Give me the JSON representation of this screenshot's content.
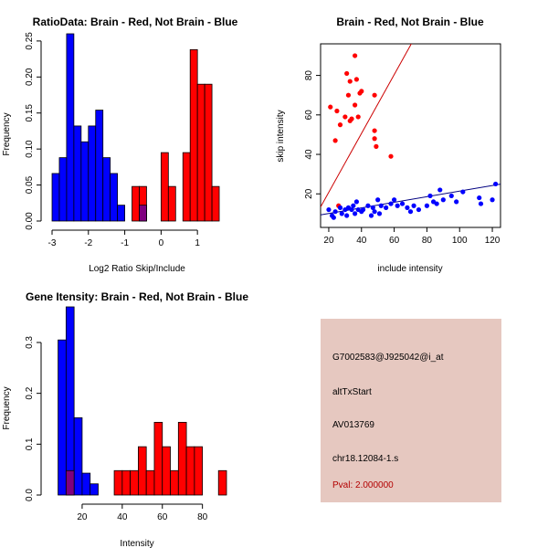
{
  "colors": {
    "red": "#ff0000",
    "blue": "#0000ff",
    "overlap": "#7f007f",
    "panel_bg": "#e6c8c0",
    "pval_text": "#b30000"
  },
  "chart_data": [
    {
      "type": "bar",
      "chart_kind": "histogram",
      "title": "RatioData: Brain - Red, Not Brain - Blue",
      "xlabel": "Log2 Ratio Skip/Include",
      "ylabel": "Frequency",
      "xlim": [
        -3,
        1.8
      ],
      "ylim": [
        0,
        0.26
      ],
      "bin_width": 0.2,
      "xticks": [
        -3,
        -2,
        -1,
        0,
        1
      ],
      "xtick_labels": [
        "-3",
        "-2",
        "-1",
        "0",
        "1"
      ],
      "yticks": [
        0,
        0.05,
        0.1,
        0.15,
        0.2,
        0.25
      ],
      "ytick_labels": [
        "0.00",
        "0.05",
        "0.10",
        "0.15",
        "0.20",
        "0.25"
      ],
      "series": [
        {
          "name": "Not Brain",
          "color": "blue",
          "bin_starts": [
            -3.0,
            -2.8,
            -2.6,
            -2.4,
            -2.2,
            -2.0,
            -1.8,
            -1.6,
            -1.4,
            -1.2,
            -1.0,
            -0.6
          ],
          "values": [
            0.066,
            0.088,
            0.26,
            0.132,
            0.11,
            0.132,
            0.154,
            0.088,
            0.066,
            0.022,
            0.0,
            0.022
          ]
        },
        {
          "name": "Brain",
          "color": "red",
          "bin_starts": [
            -0.8,
            -0.6,
            0.0,
            0.2,
            0.6,
            0.8,
            1.0,
            1.2,
            1.4
          ],
          "values": [
            0.048,
            0.048,
            0.095,
            0.048,
            0.095,
            0.238,
            0.19,
            0.19,
            0.048
          ]
        }
      ]
    },
    {
      "type": "scatter",
      "title": "Brain - Red, Not Brain - Blue",
      "xlabel": "include intensity",
      "ylabel": "skip intensity",
      "xlim": [
        15,
        125
      ],
      "ylim": [
        3,
        96
      ],
      "xticks": [
        20,
        40,
        60,
        80,
        100,
        120
      ],
      "xtick_labels": [
        "20",
        "40",
        "60",
        "80",
        "100",
        "120"
      ],
      "yticks": [
        20,
        40,
        60,
        80
      ],
      "ytick_labels": [
        "20",
        "40",
        "60",
        "80"
      ],
      "series": [
        {
          "name": "Brain",
          "color": "red",
          "points": [
            [
              21,
              64
            ],
            [
              24,
              47
            ],
            [
              25,
              62
            ],
            [
              27,
              55
            ],
            [
              30,
              59
            ],
            [
              31,
              81
            ],
            [
              32,
              70
            ],
            [
              33,
              57
            ],
            [
              33,
              77
            ],
            [
              34,
              58
            ],
            [
              36,
              90
            ],
            [
              36,
              65
            ],
            [
              37,
              78
            ],
            [
              38,
              59
            ],
            [
              39,
              71
            ],
            [
              40,
              72
            ],
            [
              48,
              70
            ],
            [
              48,
              52
            ],
            [
              48,
              48
            ],
            [
              49,
              44
            ],
            [
              58,
              39
            ],
            [
              26,
              14
            ]
          ],
          "fit": {
            "slope": 1.49,
            "intercept": -9
          }
        },
        {
          "name": "Not Brain",
          "color": "blue",
          "points": [
            [
              20,
              12
            ],
            [
              22,
              9
            ],
            [
              23,
              8
            ],
            [
              24,
              11
            ],
            [
              27,
              13
            ],
            [
              28,
              10
            ],
            [
              30,
              12
            ],
            [
              31,
              9
            ],
            [
              32,
              13
            ],
            [
              34,
              12
            ],
            [
              35,
              14
            ],
            [
              36,
              10
            ],
            [
              37,
              16
            ],
            [
              38,
              12
            ],
            [
              40,
              11
            ],
            [
              41,
              12
            ],
            [
              44,
              14
            ],
            [
              46,
              9
            ],
            [
              47,
              13
            ],
            [
              48,
              11
            ],
            [
              50,
              17
            ],
            [
              51,
              10
            ],
            [
              52,
              14
            ],
            [
              55,
              13
            ],
            [
              58,
              15
            ],
            [
              60,
              17
            ],
            [
              62,
              14
            ],
            [
              65,
              15
            ],
            [
              68,
              13
            ],
            [
              70,
              11
            ],
            [
              72,
              14
            ],
            [
              75,
              12
            ],
            [
              80,
              14
            ],
            [
              82,
              19
            ],
            [
              84,
              16
            ],
            [
              86,
              15
            ],
            [
              88,
              22
            ],
            [
              90,
              17
            ],
            [
              95,
              19
            ],
            [
              98,
              16
            ],
            [
              102,
              21
            ],
            [
              112,
              18
            ],
            [
              113,
              15
            ],
            [
              120,
              17
            ],
            [
              122,
              25
            ]
          ],
          "fit": {
            "slope": 0.142,
            "intercept": 7.2
          }
        }
      ]
    },
    {
      "type": "bar",
      "chart_kind": "histogram",
      "title": "Gene Itensity: Brain - Red, Not Brain - Blue",
      "xlabel": "Intensity",
      "ylabel": "Frequency",
      "xlim": [
        5,
        92
      ],
      "ylim": [
        0,
        0.37
      ],
      "bin_width": 4,
      "xticks": [
        20,
        40,
        60,
        80
      ],
      "xtick_labels": [
        "20",
        "40",
        "60",
        "80"
      ],
      "yticks": [
        0,
        0.1,
        0.2,
        0.3
      ],
      "ytick_labels": [
        "0.0",
        "0.1",
        "0.2",
        "0.3"
      ],
      "series": [
        {
          "name": "Not Brain",
          "color": "blue",
          "bin_starts": [
            8,
            12,
            16,
            20,
            24
          ],
          "values": [
            0.305,
            0.37,
            0.152,
            0.043,
            0.022
          ]
        },
        {
          "name": "Brain",
          "color": "red",
          "bin_starts": [
            12,
            36,
            40,
            44,
            48,
            52,
            56,
            60,
            64,
            68,
            72,
            76,
            80,
            88
          ],
          "values": [
            0.048,
            0.048,
            0.048,
            0.048,
            0.095,
            0.048,
            0.143,
            0.095,
            0.048,
            0.143,
            0.095,
            0.095,
            0.0,
            0.048
          ]
        }
      ]
    }
  ],
  "info": {
    "probe": "G7002583@J925042@i_at",
    "event": "altTxStart",
    "accession": "AV013769",
    "location": "chr18.12084-1.s",
    "pval": "Pval: 2.000000"
  }
}
